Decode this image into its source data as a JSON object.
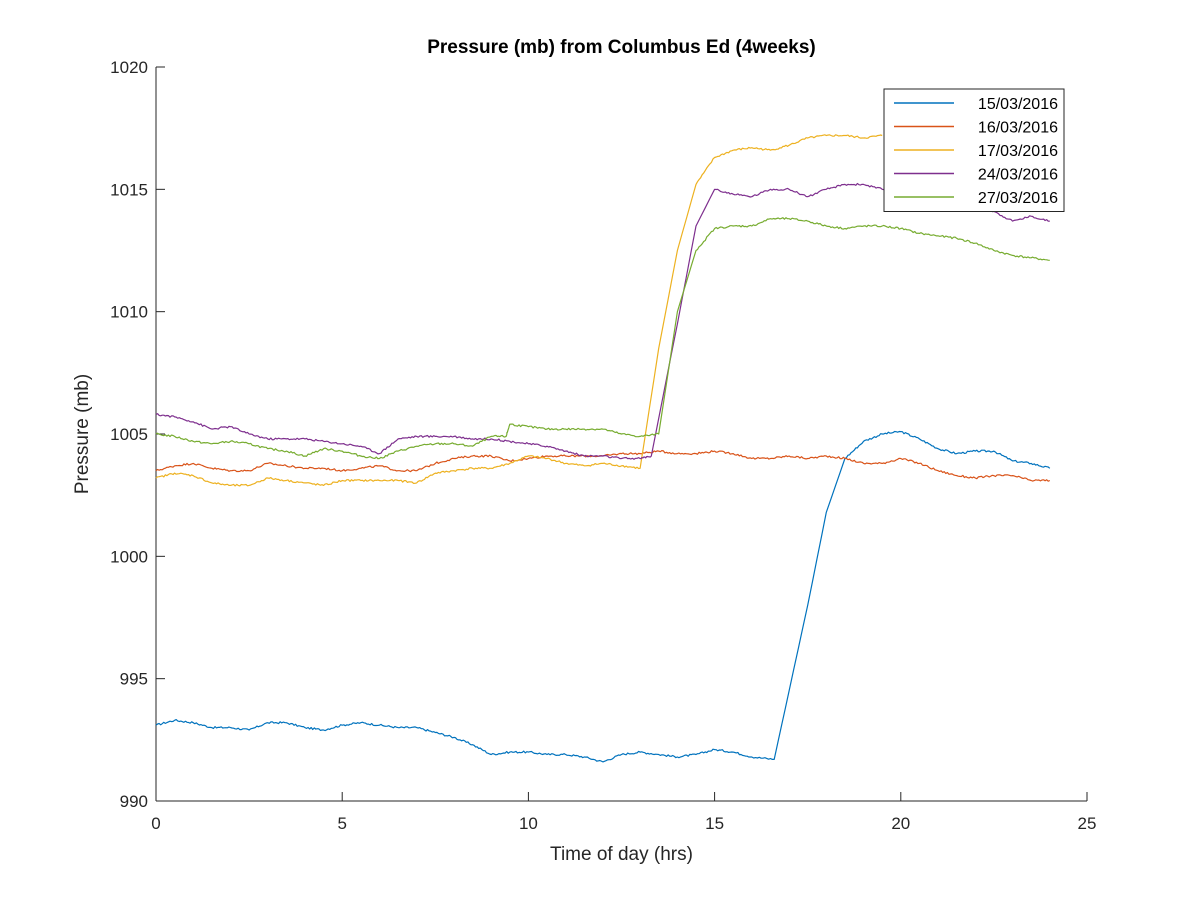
{
  "chart_data": {
    "type": "line",
    "title": "Pressure (mb) from Columbus Ed (4weeks)",
    "xlabel": "Time of day (hrs)",
    "ylabel": "Pressure (mb)",
    "xlim": [
      0,
      25
    ],
    "ylim": [
      990,
      1020
    ],
    "xticks": [
      0,
      5,
      10,
      15,
      20,
      25
    ],
    "yticks": [
      990,
      995,
      1000,
      1005,
      1010,
      1015,
      1020
    ],
    "xtick_labels": [
      "0",
      "5",
      "10",
      "15",
      "20",
      "25"
    ],
    "ytick_labels": [
      "990",
      "995",
      "1000",
      "1005",
      "1010",
      "1015",
      "1020"
    ],
    "legend_position": "top-right",
    "series": [
      {
        "name": "15/03/2016",
        "color": "#0072BD",
        "x": [
          0,
          0.5,
          1,
          1.5,
          2,
          2.5,
          3,
          3.5,
          4,
          4.5,
          5,
          5.5,
          6,
          6.5,
          7,
          7.5,
          8,
          8.5,
          9,
          9.5,
          10,
          10.5,
          11,
          11.5,
          12,
          12.5,
          13,
          13.5,
          14,
          14.5,
          15,
          15.5,
          16,
          16.6,
          17.0,
          17.5,
          18,
          18.5,
          19,
          19.5,
          20,
          20.5,
          21,
          21.5,
          22,
          22.5,
          23,
          23.5,
          24
        ],
        "values": [
          993.1,
          993.3,
          993.2,
          993.0,
          993.0,
          992.9,
          993.2,
          993.2,
          993.0,
          992.9,
          993.1,
          993.2,
          993.1,
          993.0,
          993.0,
          992.8,
          992.6,
          992.3,
          991.9,
          992.0,
          992.0,
          991.9,
          991.9,
          991.8,
          991.6,
          991.9,
          992.0,
          991.9,
          991.8,
          991.9,
          992.1,
          992.0,
          991.8,
          991.7,
          994.5,
          998.0,
          1001.8,
          1004.0,
          1004.7,
          1005.0,
          1005.1,
          1004.8,
          1004.4,
          1004.2,
          1004.3,
          1004.3,
          1003.9,
          1003.8,
          1003.6
        ]
      },
      {
        "name": "16/03/2016",
        "color": "#D95319",
        "x": [
          0,
          0.5,
          1,
          1.5,
          2,
          2.5,
          3,
          3.5,
          4,
          4.5,
          5,
          5.5,
          6,
          6.5,
          7,
          7.5,
          8,
          8.5,
          9,
          9.5,
          10,
          10.5,
          11,
          11.5,
          12,
          12.5,
          13,
          13.5,
          14,
          14.5,
          15,
          15.5,
          16,
          16.5,
          17,
          17.5,
          18,
          18.5,
          19,
          19.5,
          20,
          20.5,
          21,
          21.5,
          22,
          22.5,
          23,
          23.5,
          24
        ],
        "values": [
          1003.5,
          1003.7,
          1003.8,
          1003.6,
          1003.5,
          1003.5,
          1003.8,
          1003.7,
          1003.6,
          1003.6,
          1003.5,
          1003.6,
          1003.7,
          1003.5,
          1003.5,
          1003.8,
          1004.0,
          1004.1,
          1004.1,
          1003.9,
          1004.0,
          1004.1,
          1004.1,
          1004.1,
          1004.1,
          1004.2,
          1004.2,
          1004.3,
          1004.2,
          1004.2,
          1004.3,
          1004.2,
          1004.0,
          1004.0,
          1004.1,
          1004.0,
          1004.1,
          1004.0,
          1003.8,
          1003.8,
          1004.0,
          1003.8,
          1003.5,
          1003.3,
          1003.2,
          1003.3,
          1003.3,
          1003.1,
          1003.1
        ]
      },
      {
        "name": "17/03/2016",
        "color": "#EDB120",
        "x": [
          0,
          0.5,
          1,
          1.5,
          2,
          2.5,
          3,
          3.5,
          4,
          4.5,
          5,
          5.5,
          6,
          6.5,
          7,
          7.5,
          8,
          8.5,
          9,
          9.5,
          10,
          10.5,
          11,
          11.5,
          12,
          12.5,
          13.0,
          13.5,
          14,
          14.5,
          15,
          15.5,
          16,
          16.5,
          17,
          17.5,
          18,
          18.5,
          19,
          19.5
        ],
        "values": [
          1003.2,
          1003.4,
          1003.3,
          1003.0,
          1002.9,
          1002.9,
          1003.2,
          1003.1,
          1003.0,
          1002.9,
          1003.1,
          1003.1,
          1003.1,
          1003.1,
          1003.0,
          1003.4,
          1003.5,
          1003.6,
          1003.6,
          1003.8,
          1004.1,
          1004.0,
          1003.8,
          1003.7,
          1003.8,
          1003.7,
          1003.6,
          1008.5,
          1012.5,
          1015.2,
          1016.3,
          1016.6,
          1016.7,
          1016.6,
          1016.8,
          1017.1,
          1017.2,
          1017.2,
          1017.1,
          1017.2
        ]
      },
      {
        "name": "24/03/2016",
        "color": "#7E2F8E",
        "x": [
          0,
          0.5,
          1,
          1.5,
          2,
          2.5,
          3,
          3.5,
          4,
          4.5,
          5,
          5.5,
          6,
          6.5,
          7,
          7.5,
          8,
          8.5,
          9,
          9.5,
          10,
          10.5,
          11,
          11.5,
          12,
          12.5,
          13.0,
          13.3,
          14.0,
          14.5,
          15,
          15.5,
          16,
          16.5,
          17,
          17.5,
          18,
          18.5,
          19,
          19.5,
          20,
          20.5,
          21,
          21.5,
          22,
          22.5,
          23,
          23.5,
          24
        ],
        "values": [
          1005.8,
          1005.7,
          1005.5,
          1005.2,
          1005.3,
          1005.0,
          1004.8,
          1004.8,
          1004.8,
          1004.7,
          1004.6,
          1004.5,
          1004.2,
          1004.8,
          1004.9,
          1004.9,
          1004.9,
          1004.8,
          1004.8,
          1004.7,
          1004.6,
          1004.5,
          1004.3,
          1004.1,
          1004.1,
          1004.0,
          1004.0,
          1004.1,
          1009.5,
          1013.5,
          1015.0,
          1014.8,
          1014.7,
          1015.0,
          1015.0,
          1014.7,
          1015.0,
          1015.2,
          1015.2,
          1015.0,
          1014.6,
          1014.6,
          1014.5,
          1014.4,
          1014.3,
          1014.1,
          1013.7,
          1013.9,
          1013.7
        ]
      },
      {
        "name": "27/03/2016",
        "color": "#77AC30",
        "x": [
          0,
          0.5,
          1,
          1.5,
          2,
          2.5,
          3,
          3.5,
          4,
          4.5,
          5,
          5.5,
          6,
          6.5,
          7,
          7.5,
          8,
          8.5,
          9,
          9.4,
          9.5,
          10,
          10.5,
          11,
          11.5,
          12,
          12.5,
          13.0,
          13.5,
          14,
          14.5,
          15,
          15.5,
          16,
          16.5,
          17,
          17.5,
          18,
          18.5,
          19,
          19.5,
          20,
          20.5,
          21,
          21.5,
          22,
          22.5,
          23,
          23.5,
          24
        ],
        "values": [
          1005.0,
          1004.9,
          1004.7,
          1004.6,
          1004.7,
          1004.6,
          1004.4,
          1004.3,
          1004.1,
          1004.4,
          1004.3,
          1004.1,
          1004.0,
          1004.3,
          1004.5,
          1004.6,
          1004.6,
          1004.5,
          1004.9,
          1004.9,
          1005.4,
          1005.3,
          1005.2,
          1005.2,
          1005.2,
          1005.2,
          1005.0,
          1004.9,
          1005.0,
          1010.0,
          1012.5,
          1013.4,
          1013.5,
          1013.5,
          1013.8,
          1013.8,
          1013.7,
          1013.5,
          1013.4,
          1013.5,
          1013.5,
          1013.4,
          1013.2,
          1013.1,
          1013.0,
          1012.8,
          1012.5,
          1012.3,
          1012.2,
          1012.1
        ]
      }
    ]
  }
}
